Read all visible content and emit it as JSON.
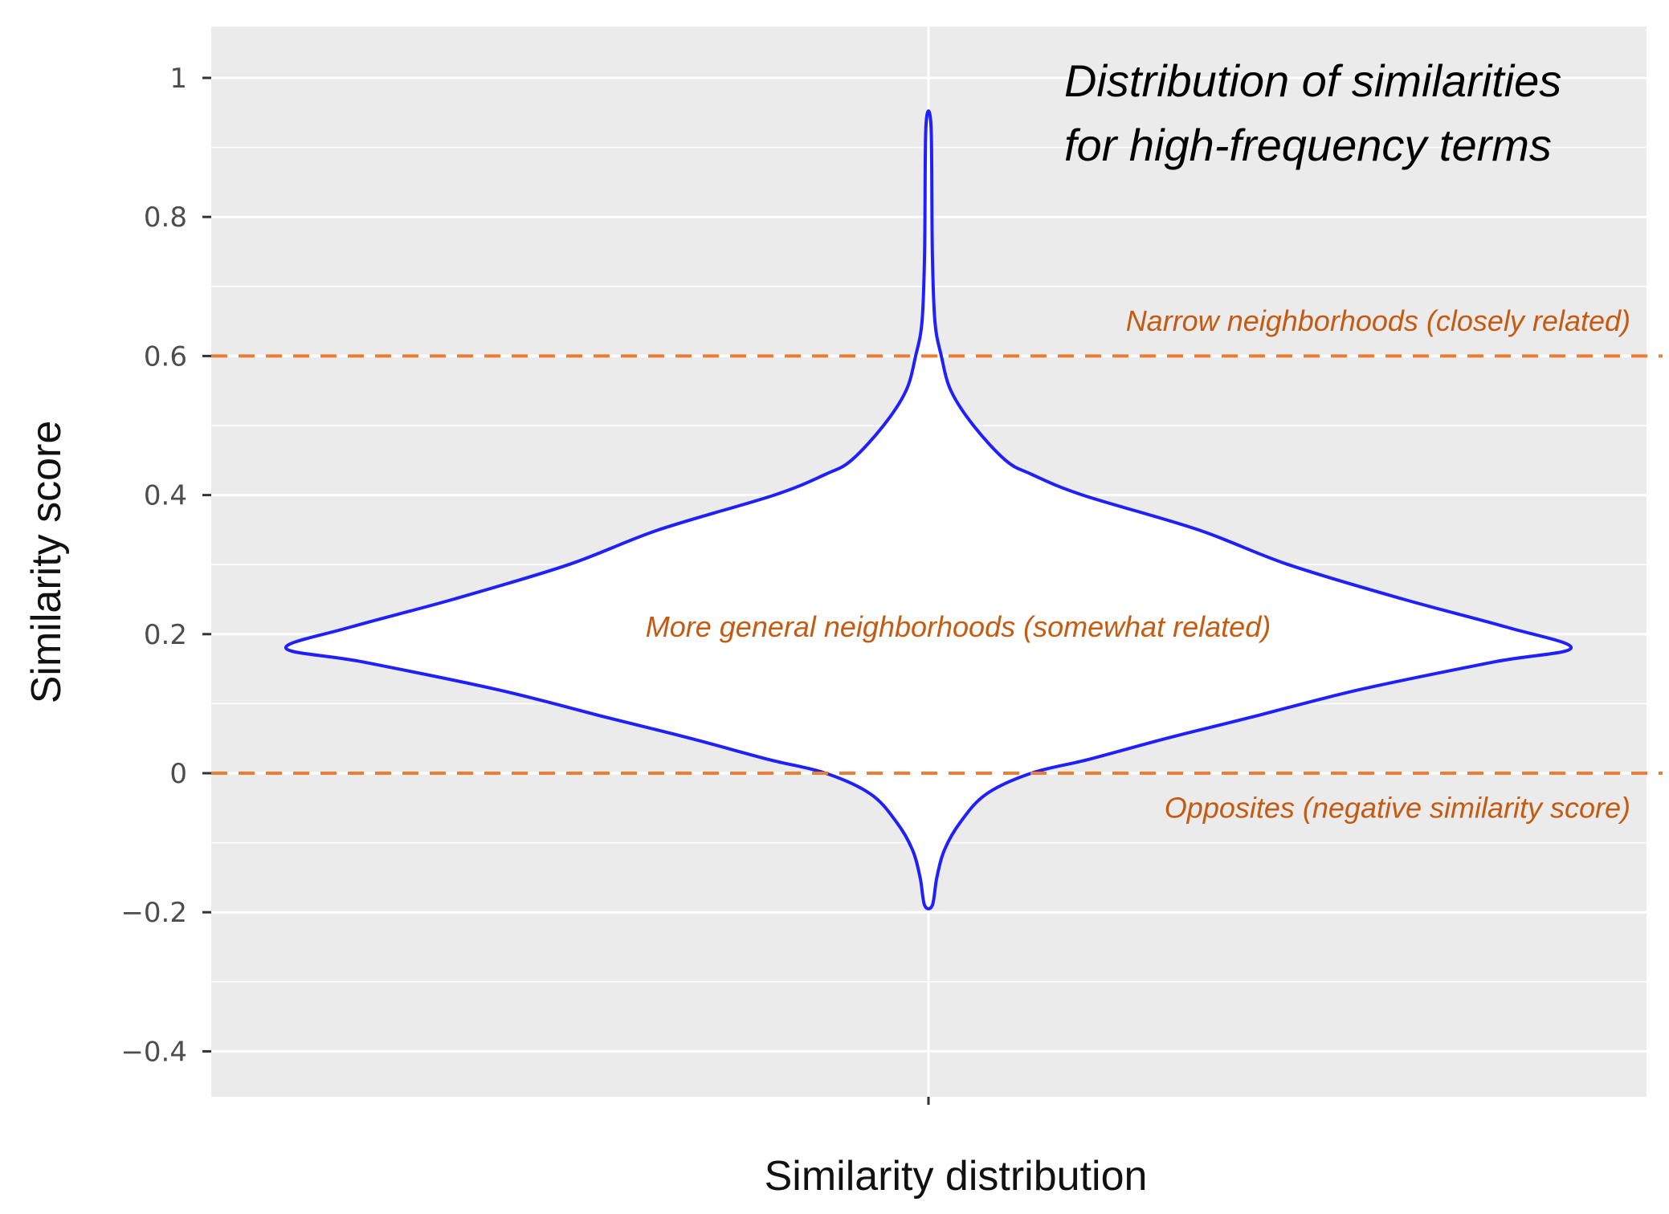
{
  "chart_data": {
    "type": "violin",
    "title_lines": [
      "Distribution of similarities",
      "for high-frequency terms"
    ],
    "xlabel": "Similarity distribution",
    "ylabel": "Similarity score",
    "ylim": [
      -0.46,
      1.05
    ],
    "yticks": [
      1,
      0.8,
      0.6,
      0.4,
      0.2,
      0,
      -0.2,
      -0.4
    ],
    "ytick_labels": [
      "1",
      "0.8",
      "0.6",
      "0.4",
      "0.2",
      "0",
      "−0.2",
      "−0.4"
    ],
    "minor_gridlines": [
      0.9,
      0.7,
      0.5,
      0.3,
      0.1,
      -0.1,
      -0.3
    ],
    "grid": true,
    "background": "#ebebeb",
    "violin": {
      "color": "#1f1fff",
      "min": -0.19,
      "max": 0.93,
      "relative_width_profile": [
        [
          0.93,
          0.004
        ],
        [
          0.75,
          0.006
        ],
        [
          0.65,
          0.01
        ],
        [
          0.6,
          0.02
        ],
        [
          0.55,
          0.035
        ],
        [
          0.5,
          0.07
        ],
        [
          0.45,
          0.12
        ],
        [
          0.43,
          0.16
        ],
        [
          0.4,
          0.24
        ],
        [
          0.35,
          0.42
        ],
        [
          0.3,
          0.56
        ],
        [
          0.25,
          0.74
        ],
        [
          0.21,
          0.9
        ],
        [
          0.18,
          1.0
        ],
        [
          0.16,
          0.88
        ],
        [
          0.12,
          0.67
        ],
        [
          0.08,
          0.5
        ],
        [
          0.05,
          0.37
        ],
        [
          0.02,
          0.25
        ],
        [
          0.0,
          0.16
        ],
        [
          -0.03,
          0.09
        ],
        [
          -0.07,
          0.05
        ],
        [
          -0.11,
          0.025
        ],
        [
          -0.15,
          0.013
        ],
        [
          -0.19,
          0.006
        ]
      ]
    },
    "reference_lines": [
      {
        "y": 0.6,
        "color": "#ed7d31",
        "style": "dashed"
      },
      {
        "y": 0.0,
        "color": "#ed7d31",
        "style": "dashed"
      }
    ],
    "annotations": [
      {
        "text": "Narrow neighborhoods (closely related)",
        "y": 0.65
      },
      {
        "text": "More general neighborhoods (somewhat related)",
        "y": 0.21
      },
      {
        "text": "Opposites (negative similarity score)",
        "y": -0.05
      }
    ]
  }
}
